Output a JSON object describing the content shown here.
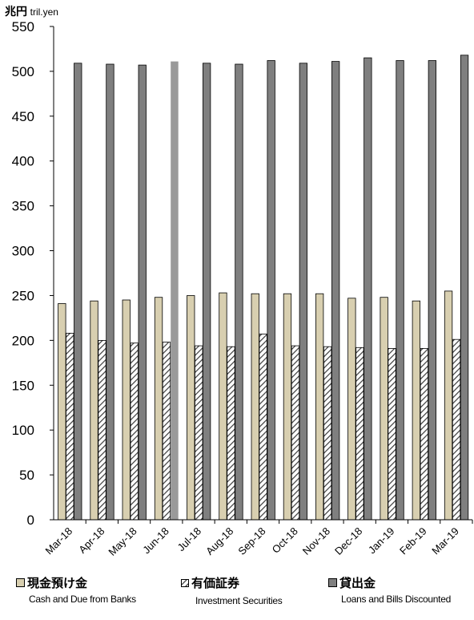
{
  "chart_data": {
    "type": "bar",
    "unit_jp": "兆円",
    "unit_en": "tril.yen",
    "categories": [
      "Mar-18",
      "Apr-18",
      "May-18",
      "Jun-18",
      "Jul-18",
      "Aug-18",
      "Sep-18",
      "Oct-18",
      "Nov-18",
      "Dec-18",
      "Jan-19",
      "Feb-19",
      "Mar-19"
    ],
    "yticks": [
      0,
      50,
      100,
      150,
      200,
      250,
      300,
      350,
      400,
      450,
      500,
      550
    ],
    "ylim": [
      0,
      550
    ],
    "grid": false,
    "legend_position": "bottom",
    "series": [
      {
        "name": "現金預け金",
        "name_en": "Cash and Due from Banks",
        "color": "#d8cfb0",
        "pattern": "solid",
        "values": [
          241,
          244,
          245,
          248,
          250,
          253,
          252,
          252,
          252,
          247,
          248,
          244,
          255
        ]
      },
      {
        "name": "有価証券",
        "name_en": "Investment Securities",
        "color": "#ffffff",
        "pattern": "hatch",
        "values": [
          208,
          200,
          197,
          198,
          194,
          193,
          207,
          194,
          193,
          192,
          191,
          191,
          201
        ]
      },
      {
        "name": "貸出金",
        "name_en": "Loans and Bills Discounted",
        "color": "#7f7f7f",
        "pattern": "solid",
        "values": [
          509,
          508,
          507,
          511,
          509,
          508,
          512,
          509,
          511,
          515,
          512,
          512,
          518
        ]
      }
    ]
  }
}
